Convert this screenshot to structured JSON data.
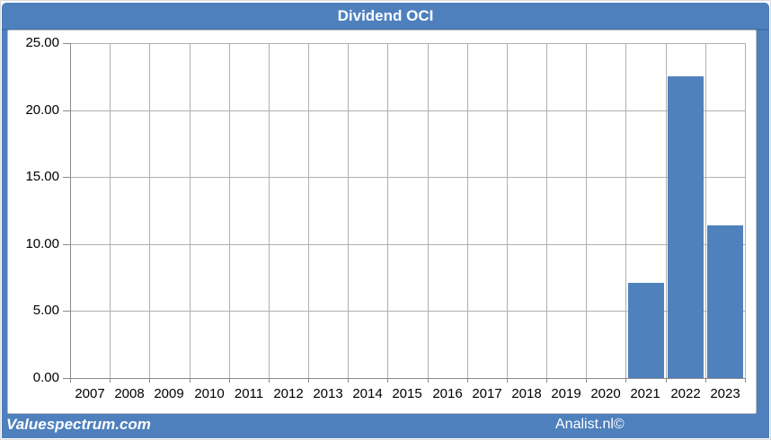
{
  "header": {
    "title": "Dividend OCI"
  },
  "footer": {
    "brand": "Valuespectrum.com",
    "credit": "Analist.nl©"
  },
  "colors": {
    "accent": "#4f81bd",
    "frame_blue": "#4e80bd",
    "title_band_border": "#4273ae",
    "grid": "#b0b0b0",
    "axis": "#8a8a8a",
    "label_text": "#000000",
    "band_text": "#ffffff"
  },
  "chart_data": {
    "type": "bar",
    "title": "Dividend OCI",
    "categories": [
      "2007",
      "2008",
      "2009",
      "2010",
      "2011",
      "2012",
      "2013",
      "2014",
      "2015",
      "2016",
      "2017",
      "2018",
      "2019",
      "2020",
      "2021",
      "2022",
      "2023"
    ],
    "values": [
      0,
      0,
      0,
      0,
      0,
      0,
      0,
      0,
      0,
      0,
      0,
      0,
      0,
      0,
      7.1,
      22.5,
      11.4
    ],
    "title_note": "",
    "xlabel": "",
    "ylabel": "",
    "ylim": [
      0,
      25
    ],
    "ytick_step": 5,
    "ytick_labels": [
      "0.00",
      "5.00",
      "10.00",
      "15.00",
      "20.00",
      "25.00"
    ],
    "grid": true,
    "legend_position": "none",
    "bar_color": "#4f81bd"
  }
}
